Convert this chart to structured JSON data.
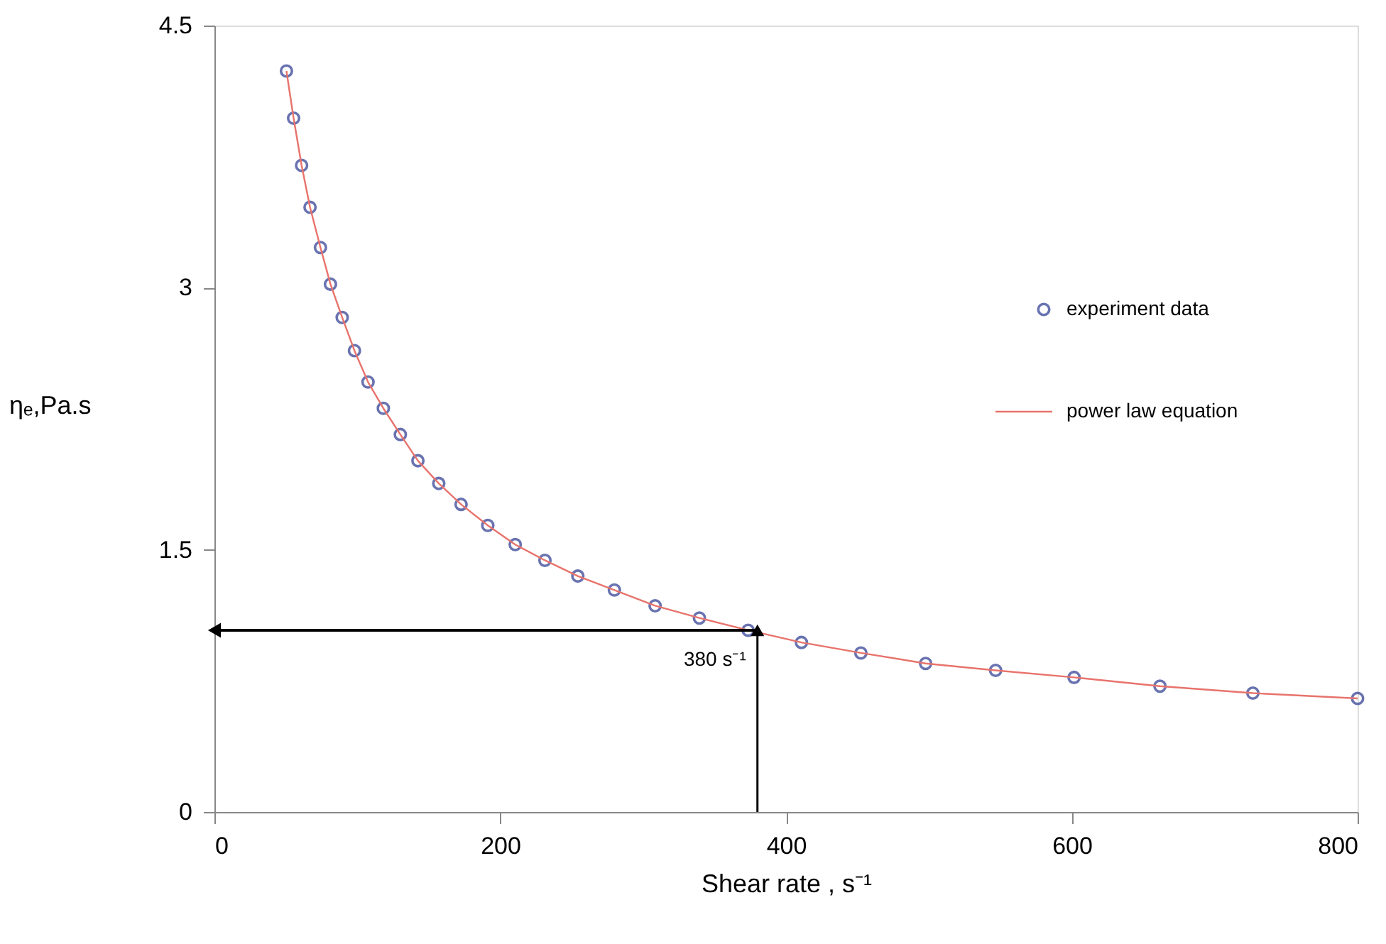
{
  "chart_data": {
    "type": "scatter",
    "xlabel": "Shear rate , s⁻¹",
    "ylabel": "ηₑ,Pa.s",
    "xlim": [
      0,
      800
    ],
    "ylim": [
      0,
      4.5
    ],
    "xticks": [
      0,
      200,
      400,
      600,
      800
    ],
    "yticks": [
      {
        "value": 0,
        "label": "0"
      },
      1.5,
      {
        "value": 3,
        "label": "3"
      },
      4.5
    ],
    "grid": false,
    "legend": "right",
    "series": [
      {
        "name": "experiment data",
        "marker": "circle",
        "color": "#2b3990",
        "x": [
          50.4,
          55.4,
          61,
          66.9,
          74.2,
          81.2,
          89.4,
          98,
          107.5,
          118.2,
          130.1,
          142.4,
          157,
          172.6,
          191.3,
          210.5,
          231.3,
          254.3,
          279.9,
          308.4,
          339.4,
          373.5,
          410.8,
          452.4,
          497.7,
          546.7,
          601.6,
          661.7,
          726.7,
          800
        ],
        "values": [
          4.24,
          3.97,
          3.7,
          3.46,
          3.23,
          3.02,
          2.83,
          2.64,
          2.46,
          2.31,
          2.16,
          2.01,
          1.88,
          1.76,
          1.64,
          1.53,
          1.44,
          1.35,
          1.27,
          1.18,
          1.11,
          1.04,
          0.97,
          0.91,
          0.85,
          0.81,
          0.77,
          0.72,
          0.68,
          0.65
        ]
      },
      {
        "name": "power law equation",
        "type": "line",
        "marker": "none",
        "line_style": "solid",
        "color": "#e8736c",
        "x": [
          50.4,
          55.4,
          61,
          66.9,
          74.2,
          81.2,
          89.4,
          98,
          107.5,
          118.2,
          130.1,
          142.4,
          157,
          172.6,
          191.3,
          210.5,
          231.3,
          254.3,
          279.9,
          308.4,
          339.4,
          373.5,
          410.8,
          452.4,
          497.7,
          546.7,
          601.6,
          661.7,
          726.7,
          800
        ],
        "values": [
          4.24,
          3.97,
          3.7,
          3.46,
          3.23,
          3.02,
          2.83,
          2.64,
          2.46,
          2.31,
          2.16,
          2.01,
          1.88,
          1.76,
          1.64,
          1.53,
          1.44,
          1.35,
          1.27,
          1.18,
          1.11,
          1.04,
          0.97,
          0.91,
          0.85,
          0.81,
          0.77,
          0.72,
          0.68,
          0.65
        ]
      }
    ],
    "annotations": [
      {
        "text": "380 s⁻¹",
        "x": 380,
        "y": 1.04
      }
    ]
  }
}
